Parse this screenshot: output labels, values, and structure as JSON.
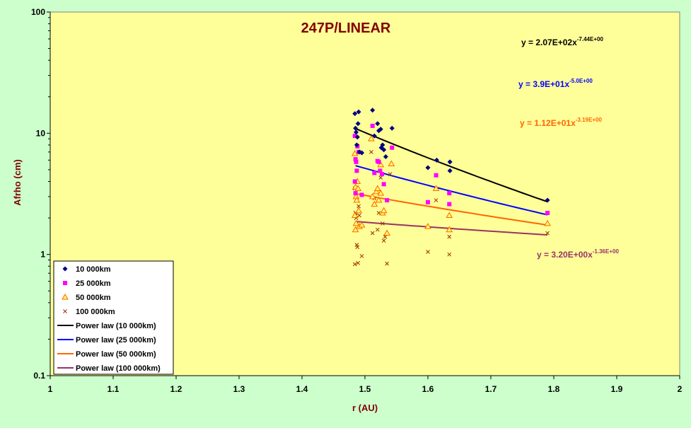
{
  "chart_data": {
    "type": "scatter",
    "title": "247P/LINEAR",
    "xlabel": "r (AU)",
    "ylabel": "Afrho (cm)",
    "xlim": [
      1,
      2
    ],
    "ylim": [
      0.1,
      100
    ],
    "yscale": "log",
    "x_ticks": [
      "1",
      "1.1",
      "1.2",
      "1.3",
      "1.4",
      "1.5",
      "1.6",
      "1.7",
      "1.8",
      "1.9",
      "2"
    ],
    "y_ticks": [
      "0.1",
      "1",
      "10",
      "100"
    ],
    "grid": false,
    "legend_position": "bottom-left",
    "colors": {
      "plot_bg": "#ffff99",
      "outer_bg": "#ccffcc",
      "title": "#800000"
    },
    "series": [
      {
        "name": "10 000km",
        "marker": "diamond",
        "color": "#000080",
        "points": [
          [
            1.484,
            14.5
          ],
          [
            1.485,
            11.0
          ],
          [
            1.486,
            10.2
          ],
          [
            1.487,
            8.0
          ],
          [
            1.488,
            9.3
          ],
          [
            1.489,
            12.0
          ],
          [
            1.49,
            15.0
          ],
          [
            1.491,
            7.0
          ],
          [
            1.495,
            6.9
          ],
          [
            1.512,
            15.5
          ],
          [
            1.515,
            9.5
          ],
          [
            1.52,
            12.0
          ],
          [
            1.522,
            10.5
          ],
          [
            1.525,
            10.8
          ],
          [
            1.526,
            7.6
          ],
          [
            1.528,
            8.0
          ],
          [
            1.53,
            7.3
          ],
          [
            1.533,
            6.4
          ],
          [
            1.543,
            11.0
          ],
          [
            1.6,
            5.2
          ],
          [
            1.614,
            6.0
          ],
          [
            1.635,
            5.8
          ],
          [
            1.635,
            4.9
          ],
          [
            1.79,
            2.8
          ]
        ]
      },
      {
        "name": "25 000km",
        "marker": "square",
        "color": "#ff00ff",
        "points": [
          [
            1.484,
            9.5
          ],
          [
            1.485,
            6.1
          ],
          [
            1.486,
            5.8
          ],
          [
            1.487,
            4.9
          ],
          [
            1.488,
            7.8
          ],
          [
            1.49,
            7.0
          ],
          [
            1.495,
            3.1
          ],
          [
            1.484,
            4.0
          ],
          [
            1.485,
            3.2
          ],
          [
            1.512,
            11.5
          ],
          [
            1.515,
            4.7
          ],
          [
            1.52,
            5.9
          ],
          [
            1.522,
            5.8
          ],
          [
            1.524,
            4.9
          ],
          [
            1.527,
            4.6
          ],
          [
            1.53,
            3.8
          ],
          [
            1.535,
            2.8
          ],
          [
            1.543,
            7.6
          ],
          [
            1.6,
            2.7
          ],
          [
            1.613,
            4.5
          ],
          [
            1.634,
            3.2
          ],
          [
            1.634,
            2.6
          ],
          [
            1.79,
            2.2
          ]
        ]
      },
      {
        "name": "50 000km",
        "marker": "triangle",
        "color": "#ff6600",
        "points": [
          [
            1.484,
            6.8
          ],
          [
            1.485,
            3.6
          ],
          [
            1.486,
            3.0
          ],
          [
            1.487,
            2.8
          ],
          [
            1.488,
            4.0
          ],
          [
            1.489,
            3.5
          ],
          [
            1.49,
            2.3
          ],
          [
            1.491,
            1.7
          ],
          [
            1.484,
            2.1
          ],
          [
            1.485,
            1.6
          ],
          [
            1.486,
            1.8
          ],
          [
            1.495,
            1.75
          ],
          [
            1.51,
            9.0
          ],
          [
            1.512,
            3.0
          ],
          [
            1.515,
            2.6
          ],
          [
            1.518,
            3.3
          ],
          [
            1.52,
            3.5
          ],
          [
            1.522,
            2.8
          ],
          [
            1.525,
            5.5
          ],
          [
            1.525,
            3.2
          ],
          [
            1.528,
            2.2
          ],
          [
            1.53,
            2.3
          ],
          [
            1.535,
            1.5
          ],
          [
            1.542,
            5.6
          ],
          [
            1.6,
            1.7
          ],
          [
            1.613,
            3.5
          ],
          [
            1.634,
            2.1
          ],
          [
            1.634,
            1.6
          ],
          [
            1.79,
            1.8
          ]
        ]
      },
      {
        "name": "100 000km",
        "marker": "x",
        "color": "#993300",
        "points": [
          [
            1.484,
            3.5
          ],
          [
            1.485,
            2.2
          ],
          [
            1.486,
            2.0
          ],
          [
            1.487,
            1.2
          ],
          [
            1.488,
            1.15
          ],
          [
            1.489,
            0.85
          ],
          [
            1.49,
            2.5
          ],
          [
            1.491,
            2.1
          ],
          [
            1.484,
            0.83
          ],
          [
            1.485,
            2.2
          ],
          [
            1.495,
            0.97
          ],
          [
            1.51,
            7.0
          ],
          [
            1.512,
            1.5
          ],
          [
            1.515,
            2.9
          ],
          [
            1.52,
            1.6
          ],
          [
            1.522,
            2.2
          ],
          [
            1.525,
            4.3
          ],
          [
            1.528,
            1.8
          ],
          [
            1.53,
            1.3
          ],
          [
            1.532,
            1.4
          ],
          [
            1.535,
            0.84
          ],
          [
            1.54,
            4.6
          ],
          [
            1.6,
            1.05
          ],
          [
            1.613,
            2.8
          ],
          [
            1.634,
            1.4
          ],
          [
            1.634,
            1.0
          ],
          [
            1.79,
            1.5
          ]
        ]
      }
    ],
    "fits": [
      {
        "name": "Power law (10 000km)",
        "color": "#000000",
        "coef": 207,
        "exp": -7.44,
        "x_range": [
          1.485,
          1.79
        ],
        "equation_main": "y = 2.07E+02x",
        "equation_exp": "-7.44E+00"
      },
      {
        "name": "Power law (25 000km)",
        "color": "#0000ff",
        "coef": 39,
        "exp": -5.0,
        "x_range": [
          1.485,
          1.79
        ],
        "equation_main": "y = 3.9E+01x",
        "equation_exp": "-5.0E+00"
      },
      {
        "name": "Power law (50 000km)",
        "color": "#ff6600",
        "coef": 11.2,
        "exp": -3.19,
        "x_range": [
          1.485,
          1.79
        ],
        "equation_main": "y = 1.12E+01x",
        "equation_exp": "-3.19E+00"
      },
      {
        "name": "Power law (100 000km)",
        "color": "#993366",
        "coef": 3.2,
        "exp": -1.36,
        "x_range": [
          1.485,
          1.79
        ],
        "equation_main": "y = 3.20E+00x",
        "equation_exp": "-1.36E+00"
      }
    ]
  }
}
